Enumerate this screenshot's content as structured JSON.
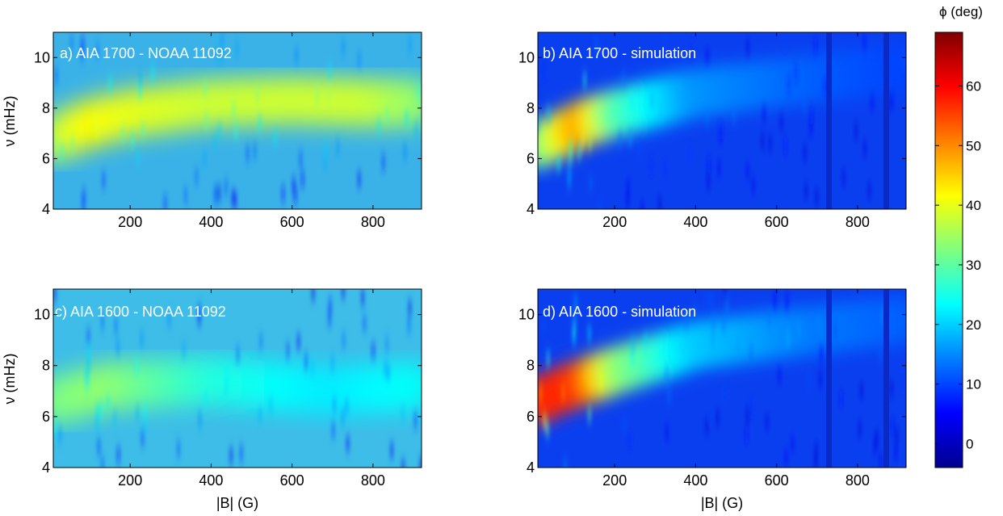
{
  "chart_data": [
    {
      "type": "heatmap",
      "panel": "a",
      "label": "a) AIA 1700 - NOAA 11092",
      "xlabel": "",
      "ylabel": "ν (mHz)",
      "xlim": [
        10,
        920
      ],
      "ylim": [
        4,
        11
      ],
      "xticks": [
        200,
        400,
        600,
        800
      ],
      "yticks": [
        4,
        6,
        8,
        10
      ],
      "ridge": [
        {
          "B": 10,
          "nu": 6.8,
          "phi": 36
        },
        {
          "B": 100,
          "nu": 7.4,
          "phi": 42
        },
        {
          "B": 200,
          "nu": 7.8,
          "phi": 40
        },
        {
          "B": 400,
          "nu": 8.2,
          "phi": 38
        },
        {
          "B": 600,
          "nu": 8.3,
          "phi": 38
        },
        {
          "B": 800,
          "nu": 8.2,
          "phi": 38
        },
        {
          "B": 920,
          "nu": 8.2,
          "phi": 34
        }
      ]
    },
    {
      "type": "heatmap",
      "panel": "b",
      "label": "b) AIA 1700 - simulation",
      "xlabel": "",
      "ylabel": "",
      "xlim": [
        10,
        920
      ],
      "ylim": [
        4,
        11
      ],
      "xticks": [
        200,
        400,
        600,
        800
      ],
      "yticks": [
        4,
        6,
        8,
        10
      ],
      "ridge": [
        {
          "B": 10,
          "nu": 6.5,
          "phi": 30
        },
        {
          "B": 120,
          "nu": 7.4,
          "phi": 50
        },
        {
          "B": 200,
          "nu": 7.8,
          "phi": 30
        },
        {
          "B": 400,
          "nu": 8.6,
          "phi": 16
        },
        {
          "B": 700,
          "nu": 9.2,
          "phi": 12
        },
        {
          "B": 920,
          "nu": 9.6,
          "phi": 10
        }
      ]
    },
    {
      "type": "heatmap",
      "panel": "c",
      "label": "c) AIA 1600 - NOAA 11092",
      "xlabel": "|B| (G)",
      "ylabel": "ν (mHz)",
      "xlim": [
        10,
        920
      ],
      "ylim": [
        4,
        11
      ],
      "xticks": [
        200,
        400,
        600,
        800
      ],
      "yticks": [
        4,
        6,
        8,
        10
      ],
      "ridge": [
        {
          "B": 10,
          "nu": 6.6,
          "phi": 32
        },
        {
          "B": 150,
          "nu": 7.2,
          "phi": 34
        },
        {
          "B": 400,
          "nu": 7.4,
          "phi": 26
        },
        {
          "B": 700,
          "nu": 7.0,
          "phi": 22
        },
        {
          "B": 920,
          "nu": 7.2,
          "phi": 24
        }
      ]
    },
    {
      "type": "heatmap",
      "panel": "d",
      "label": "d) AIA 1600 - simulation",
      "xlabel": "|B| (G)",
      "ylabel": "",
      "xlim": [
        10,
        920
      ],
      "ylim": [
        4,
        11
      ],
      "xticks": [
        200,
        400,
        600,
        800
      ],
      "yticks": [
        4,
        6,
        8,
        10
      ],
      "ridge": [
        {
          "B": 10,
          "nu": 6.6,
          "phi": 55
        },
        {
          "B": 60,
          "nu": 7.0,
          "phi": 58
        },
        {
          "B": 130,
          "nu": 7.4,
          "phi": 55
        },
        {
          "B": 200,
          "nu": 7.8,
          "phi": 35
        },
        {
          "B": 400,
          "nu": 8.8,
          "phi": 20
        },
        {
          "B": 700,
          "nu": 9.4,
          "phi": 14
        },
        {
          "B": 920,
          "nu": 9.8,
          "phi": 12
        }
      ]
    }
  ],
  "colorbar": {
    "title": "ϕ (deg)",
    "ticks": [
      0,
      10,
      20,
      30,
      40,
      50,
      60
    ],
    "range": [
      -4,
      69
    ],
    "colormap": "jet"
  }
}
